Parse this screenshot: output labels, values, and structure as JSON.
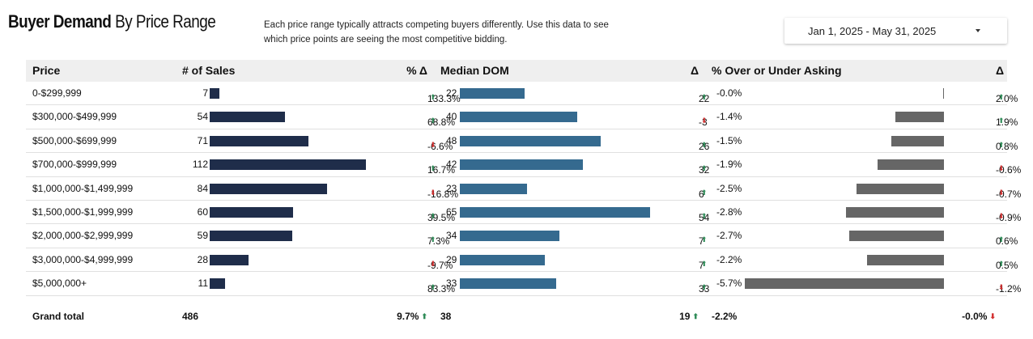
{
  "header": {
    "title_bold": "Buyer Demand",
    "title_rest": "By Price Range",
    "description_line1": "Each price range typically attracts competing buyers differently.  Use this data to see",
    "description_line2": "which price points are seeing the most competitive bidding.",
    "date_range": "Jan 1, 2025 - May 31, 2025"
  },
  "columns": {
    "price": "Price",
    "sales": "# of Sales",
    "sales_delta": "% Δ",
    "dom": "Median DOM",
    "dom_delta": "Δ",
    "over": "% Over or Under Asking",
    "over_delta": "Δ"
  },
  "rows": [
    {
      "price": "0-$299,999",
      "sales": "7",
      "sales_delta": "133.3%",
      "sales_dir": "up",
      "dom": "22",
      "dom_delta": "22",
      "dom_dir": "up",
      "over": "-0.0%",
      "over_delta": "2.0%",
      "over_dir": "up"
    },
    {
      "price": "$300,000-$499,999",
      "sales": "54",
      "sales_delta": "68.8%",
      "sales_dir": "up",
      "dom": "40",
      "dom_delta": "-3",
      "dom_dir": "down",
      "over": "-1.4%",
      "over_delta": "1.9%",
      "over_dir": "up"
    },
    {
      "price": "$500,000-$699,999",
      "sales": "71",
      "sales_delta": "-6.6%",
      "sales_dir": "down",
      "dom": "48",
      "dom_delta": "26",
      "dom_dir": "up",
      "over": "-1.5%",
      "over_delta": "0.8%",
      "over_dir": "up"
    },
    {
      "price": "$700,000-$999,999",
      "sales": "112",
      "sales_delta": "16.7%",
      "sales_dir": "up",
      "dom": "42",
      "dom_delta": "32",
      "dom_dir": "up",
      "over": "-1.9%",
      "over_delta": "-0.6%",
      "over_dir": "down"
    },
    {
      "price": "$1,000,000-$1,499,999",
      "sales": "84",
      "sales_delta": "-16.8%",
      "sales_dir": "down",
      "dom": "23",
      "dom_delta": "6",
      "dom_dir": "up",
      "over": "-2.5%",
      "over_delta": "-0.7%",
      "over_dir": "down"
    },
    {
      "price": "$1,500,000-$1,999,999",
      "sales": "60",
      "sales_delta": "39.5%",
      "sales_dir": "up",
      "dom": "65",
      "dom_delta": "54",
      "dom_dir": "up",
      "over": "-2.8%",
      "over_delta": "-0.9%",
      "over_dir": "down"
    },
    {
      "price": "$2,000,000-$2,999,999",
      "sales": "59",
      "sales_delta": "7.3%",
      "sales_dir": "up",
      "dom": "34",
      "dom_delta": "7",
      "dom_dir": "up",
      "over": "-2.7%",
      "over_delta": "0.6%",
      "over_dir": "up"
    },
    {
      "price": "$3,000,000-$4,999,999",
      "sales": "28",
      "sales_delta": "-9.7%",
      "sales_dir": "down",
      "dom": "29",
      "dom_delta": "7",
      "dom_dir": "up",
      "over": "-2.2%",
      "over_delta": "0.5%",
      "over_dir": "up"
    },
    {
      "price": "$5,000,000+",
      "sales": "11",
      "sales_delta": "83.3%",
      "sales_dir": "up",
      "dom": "33",
      "dom_delta": "33",
      "dom_dir": "up",
      "over": "-5.7%",
      "over_delta": "-1.2%",
      "over_dir": "down"
    }
  ],
  "total": {
    "label": "Grand total",
    "sales": "486",
    "sales_delta": "9.7%",
    "sales_dir": "up",
    "dom": "38",
    "dom_delta": "19",
    "dom_dir": "up",
    "over": "-2.2%",
    "over_delta": "-0.0%",
    "over_dir": "down"
  },
  "icons": {
    "up": "arrow-up-icon",
    "down": "arrow-down-icon",
    "dropdown": "caret-down-icon"
  },
  "colors": {
    "sales_bar": "#1f2d4a",
    "dom_bar": "#356a8f",
    "over_bar": "#666666",
    "up": "#2e8b57",
    "down": "#d32f2f"
  }
}
